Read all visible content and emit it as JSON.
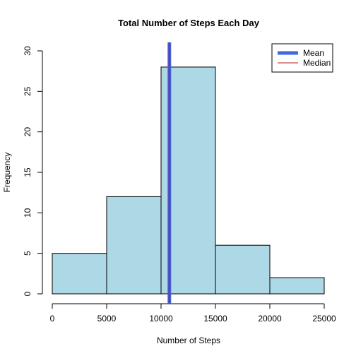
{
  "chart_data": {
    "type": "bar",
    "title": "Total Number of Steps Each Day",
    "xlabel": "Number of Steps",
    "ylabel": "Frequency",
    "xlim": [
      0,
      25000
    ],
    "ylim": [
      0,
      30
    ],
    "x_ticks": [
      0,
      5000,
      10000,
      15000,
      20000,
      25000
    ],
    "y_ticks": [
      0,
      5,
      10,
      15,
      20,
      25,
      30
    ],
    "bins": [
      {
        "from": 0,
        "to": 5000,
        "count": 5
      },
      {
        "from": 5000,
        "to": 10000,
        "count": 12
      },
      {
        "from": 10000,
        "to": 15000,
        "count": 28
      },
      {
        "from": 15000,
        "to": 20000,
        "count": 6
      },
      {
        "from": 20000,
        "to": 25000,
        "count": 2
      }
    ],
    "bar_color": "#add8e6",
    "grid": false,
    "reference_lines": [
      {
        "name": "Mean",
        "value": 10766,
        "color": "#4169e1"
      },
      {
        "name": "Median",
        "value": 10765,
        "color": "#b22222"
      }
    ],
    "overlap_color": "#6a3d9a",
    "legend": {
      "position": "top-right",
      "entries": [
        "Mean",
        "Median"
      ]
    }
  }
}
